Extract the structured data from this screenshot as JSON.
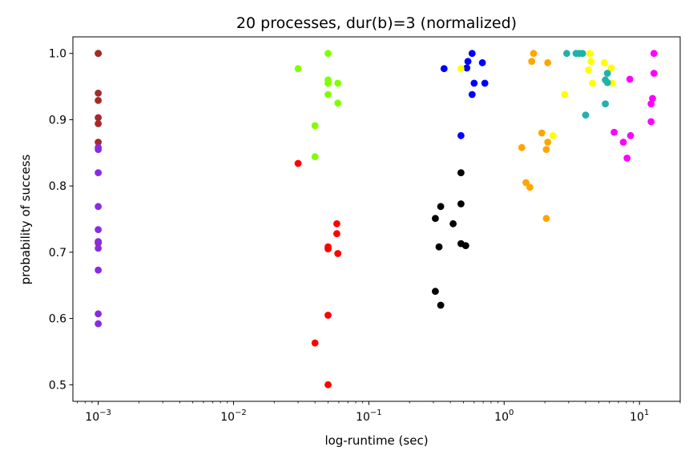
{
  "chart_data": {
    "type": "scatter",
    "title": "20 processes, dur(b)=3 (normalized)",
    "xlabel": "log-runtime (sec)",
    "ylabel": "probability of success",
    "xscale": "log",
    "xlim": [
      0.00065,
      20
    ],
    "ylim": [
      0.475,
      1.025
    ],
    "xticks": [
      {
        "value": 0.001,
        "base": "10",
        "exp": "−3"
      },
      {
        "value": 0.01,
        "base": "10",
        "exp": "−2"
      },
      {
        "value": 0.1,
        "base": "10",
        "exp": "−1"
      },
      {
        "value": 1,
        "base": "10",
        "exp": "0"
      },
      {
        "value": 10,
        "base": "10",
        "exp": "1"
      }
    ],
    "yticks": [
      "0.5",
      "0.6",
      "0.7",
      "0.8",
      "0.9",
      "1.0"
    ],
    "series": [
      {
        "name": "brown",
        "color": "#a52a2a",
        "points": [
          [
            0.001,
            1.0
          ],
          [
            0.001,
            1.0
          ],
          [
            0.001,
            0.94
          ],
          [
            0.001,
            0.929
          ],
          [
            0.001,
            0.903
          ],
          [
            0.001,
            0.894
          ],
          [
            0.001,
            0.866
          ],
          [
            0.001,
            0.716
          ],
          [
            0.001,
            0.714
          ]
        ]
      },
      {
        "name": "purple",
        "color": "#8a2be2",
        "points": [
          [
            0.001,
            0.858
          ],
          [
            0.001,
            0.855
          ],
          [
            0.001,
            0.82
          ],
          [
            0.001,
            0.769
          ],
          [
            0.001,
            0.734
          ],
          [
            0.001,
            0.716
          ],
          [
            0.001,
            0.706
          ],
          [
            0.001,
            0.673
          ],
          [
            0.001,
            0.607
          ],
          [
            0.001,
            0.592
          ]
        ]
      },
      {
        "name": "red",
        "color": "#ff0000",
        "points": [
          [
            0.03,
            0.834
          ],
          [
            0.058,
            0.743
          ],
          [
            0.058,
            0.728
          ],
          [
            0.05,
            0.708
          ],
          [
            0.05,
            0.705
          ],
          [
            0.059,
            0.698
          ],
          [
            0.05,
            0.605
          ],
          [
            0.04,
            0.563
          ],
          [
            0.05,
            0.5
          ]
        ]
      },
      {
        "name": "chartreuse",
        "color": "#7fff00",
        "points": [
          [
            0.05,
            1.0
          ],
          [
            0.03,
            0.977
          ],
          [
            0.05,
            0.96
          ],
          [
            0.05,
            0.955
          ],
          [
            0.059,
            0.955
          ],
          [
            0.05,
            0.938
          ],
          [
            0.059,
            0.925
          ],
          [
            0.04,
            0.891
          ],
          [
            0.04,
            0.844
          ]
        ]
      },
      {
        "name": "black",
        "color": "#000000",
        "points": [
          [
            0.48,
            0.82
          ],
          [
            0.48,
            0.773
          ],
          [
            0.34,
            0.769
          ],
          [
            0.31,
            0.751
          ],
          [
            0.42,
            0.743
          ],
          [
            0.48,
            0.713
          ],
          [
            0.52,
            0.71
          ],
          [
            0.33,
            0.708
          ],
          [
            0.31,
            0.641
          ],
          [
            0.34,
            0.62
          ]
        ]
      },
      {
        "name": "blue",
        "color": "#0000ff",
        "points": [
          [
            0.58,
            1.0
          ],
          [
            0.69,
            0.986
          ],
          [
            0.54,
            0.988
          ],
          [
            0.53,
            0.978
          ],
          [
            0.36,
            0.977
          ],
          [
            0.6,
            0.955
          ],
          [
            0.72,
            0.955
          ],
          [
            0.58,
            0.938
          ],
          [
            0.48,
            0.876
          ]
        ]
      },
      {
        "name": "orange",
        "color": "#ffa500",
        "points": [
          [
            1.65,
            1.0
          ],
          [
            1.6,
            0.988
          ],
          [
            2.1,
            0.986
          ],
          [
            1.9,
            0.88
          ],
          [
            2.1,
            0.866
          ],
          [
            1.35,
            0.858
          ],
          [
            2.05,
            0.855
          ],
          [
            1.45,
            0.805
          ],
          [
            1.55,
            0.798
          ],
          [
            2.05,
            0.751
          ]
        ]
      },
      {
        "name": "yellow",
        "color": "#ffff00",
        "points": [
          [
            0.48,
            0.977
          ],
          [
            4.3,
            1.0
          ],
          [
            4.4,
            0.988
          ],
          [
            5.5,
            0.986
          ],
          [
            6.2,
            0.978
          ],
          [
            4.2,
            0.975
          ],
          [
            4.5,
            0.955
          ],
          [
            6.3,
            0.955
          ],
          [
            2.8,
            0.938
          ],
          [
            2.3,
            0.876
          ]
        ]
      },
      {
        "name": "teal",
        "color": "#20b2aa",
        "points": [
          [
            2.9,
            1.0
          ],
          [
            3.4,
            1.0
          ],
          [
            3.6,
            1.0
          ],
          [
            3.8,
            1.0
          ],
          [
            5.8,
            0.97
          ],
          [
            5.6,
            0.96
          ],
          [
            5.8,
            0.956
          ],
          [
            5.6,
            0.924
          ],
          [
            4.0,
            0.907
          ]
        ]
      },
      {
        "name": "magenta",
        "color": "#ff00ff",
        "points": [
          [
            12.8,
            1.0
          ],
          [
            12.8,
            0.97
          ],
          [
            8.5,
            0.961
          ],
          [
            12.5,
            0.932
          ],
          [
            12.2,
            0.924
          ],
          [
            12.2,
            0.897
          ],
          [
            6.5,
            0.881
          ],
          [
            8.6,
            0.876
          ],
          [
            7.6,
            0.866
          ],
          [
            8.1,
            0.842
          ]
        ]
      }
    ]
  }
}
